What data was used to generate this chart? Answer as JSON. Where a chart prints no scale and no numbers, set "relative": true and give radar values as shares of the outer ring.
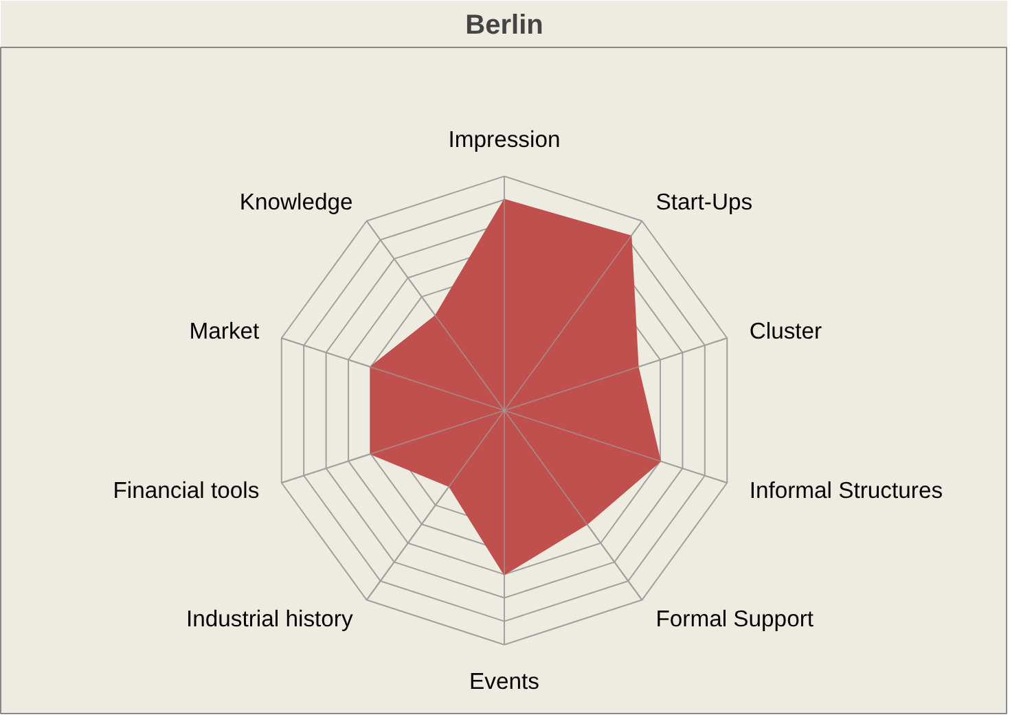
{
  "chart_data": {
    "type": "radar",
    "title": "Berlin",
    "relative": true,
    "grid": true,
    "categories": [
      "Impression",
      "Start-Ups",
      "Cluster",
      "Informal Structures",
      "Formal Support",
      "Events",
      "Industrial history",
      "Financial tools",
      "Market",
      "Knowledge"
    ],
    "series": [
      {
        "color": "#c0504d",
        "values": [
          0.9,
          0.92,
          0.6,
          0.7,
          0.6,
          0.7,
          0.4,
          0.6,
          0.6,
          0.5
        ]
      }
    ]
  }
}
